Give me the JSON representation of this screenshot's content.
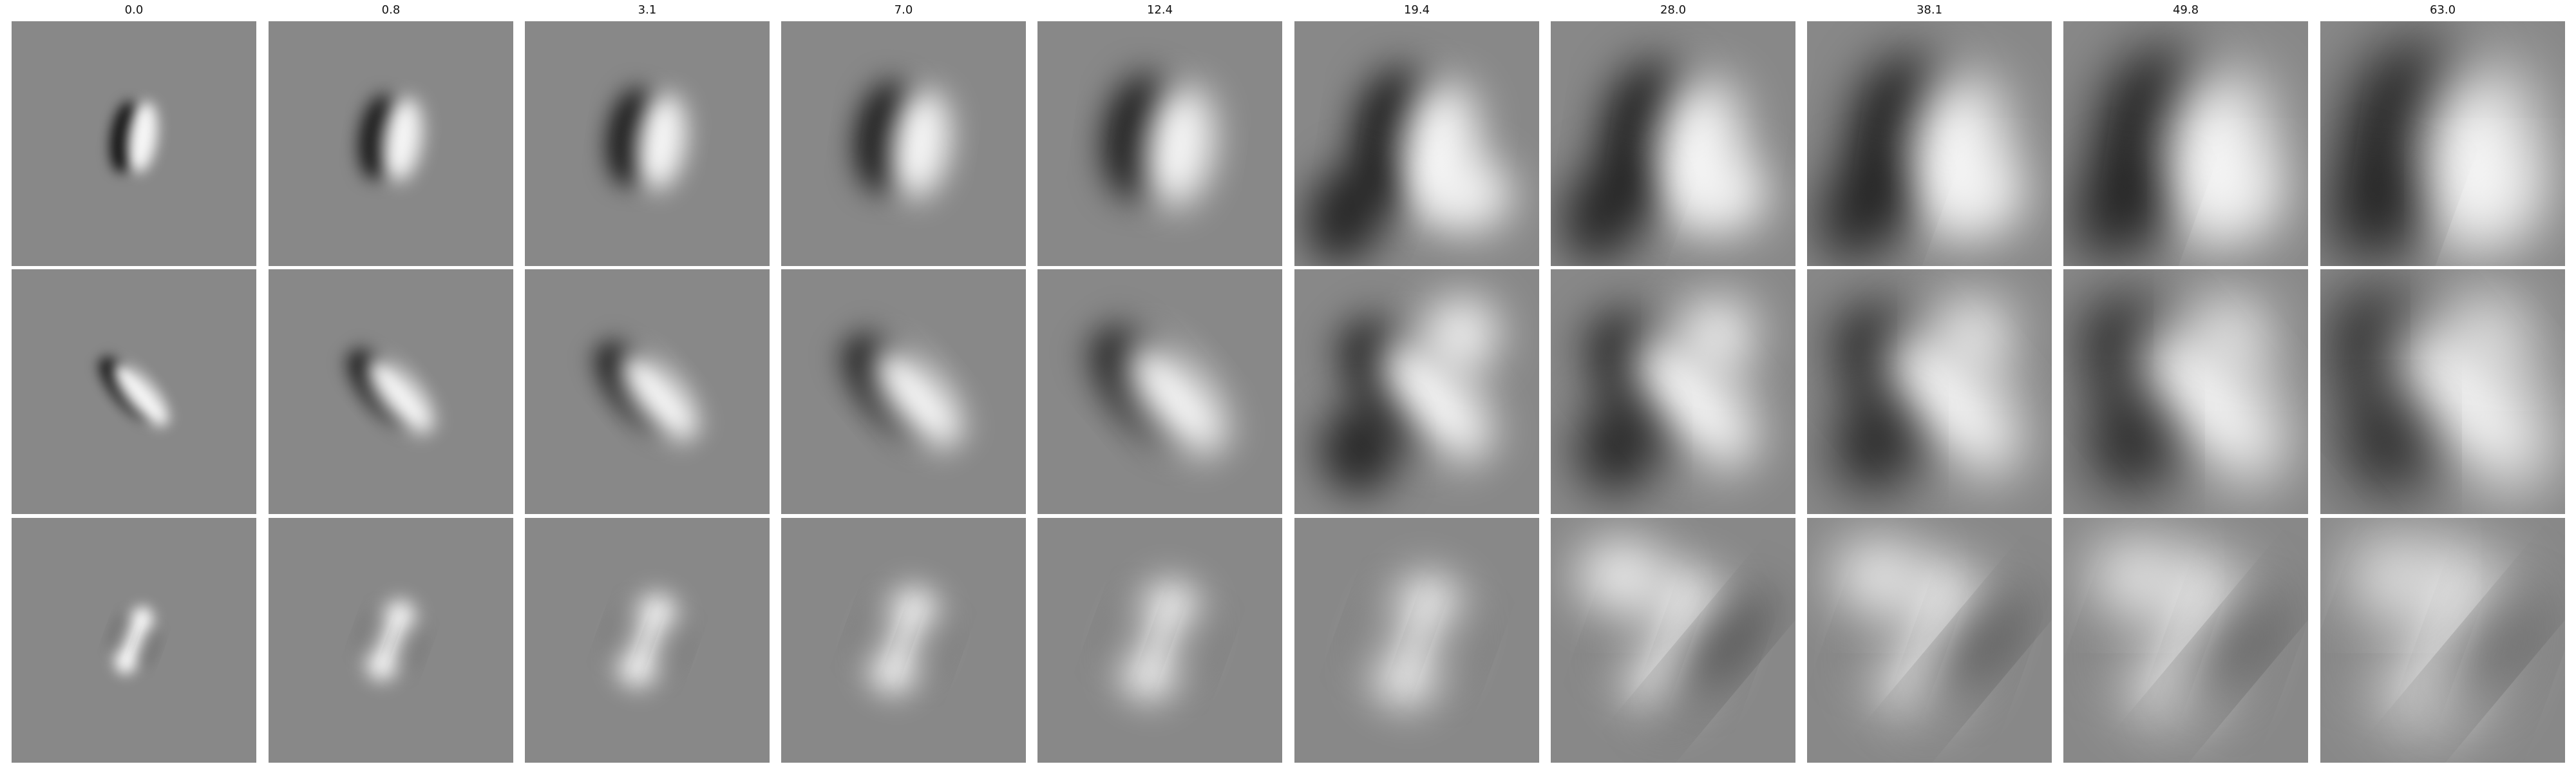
{
  "column_labels": [
    "0.0",
    "0.8",
    "3.1",
    "7.0",
    "12.4",
    "19.4",
    "28.0",
    "38.1",
    "49.8",
    "63.0"
  ],
  "rows": 3,
  "grayscale": {
    "background": "#888888",
    "dark": "#000000",
    "light": "#ffffff"
  }
}
